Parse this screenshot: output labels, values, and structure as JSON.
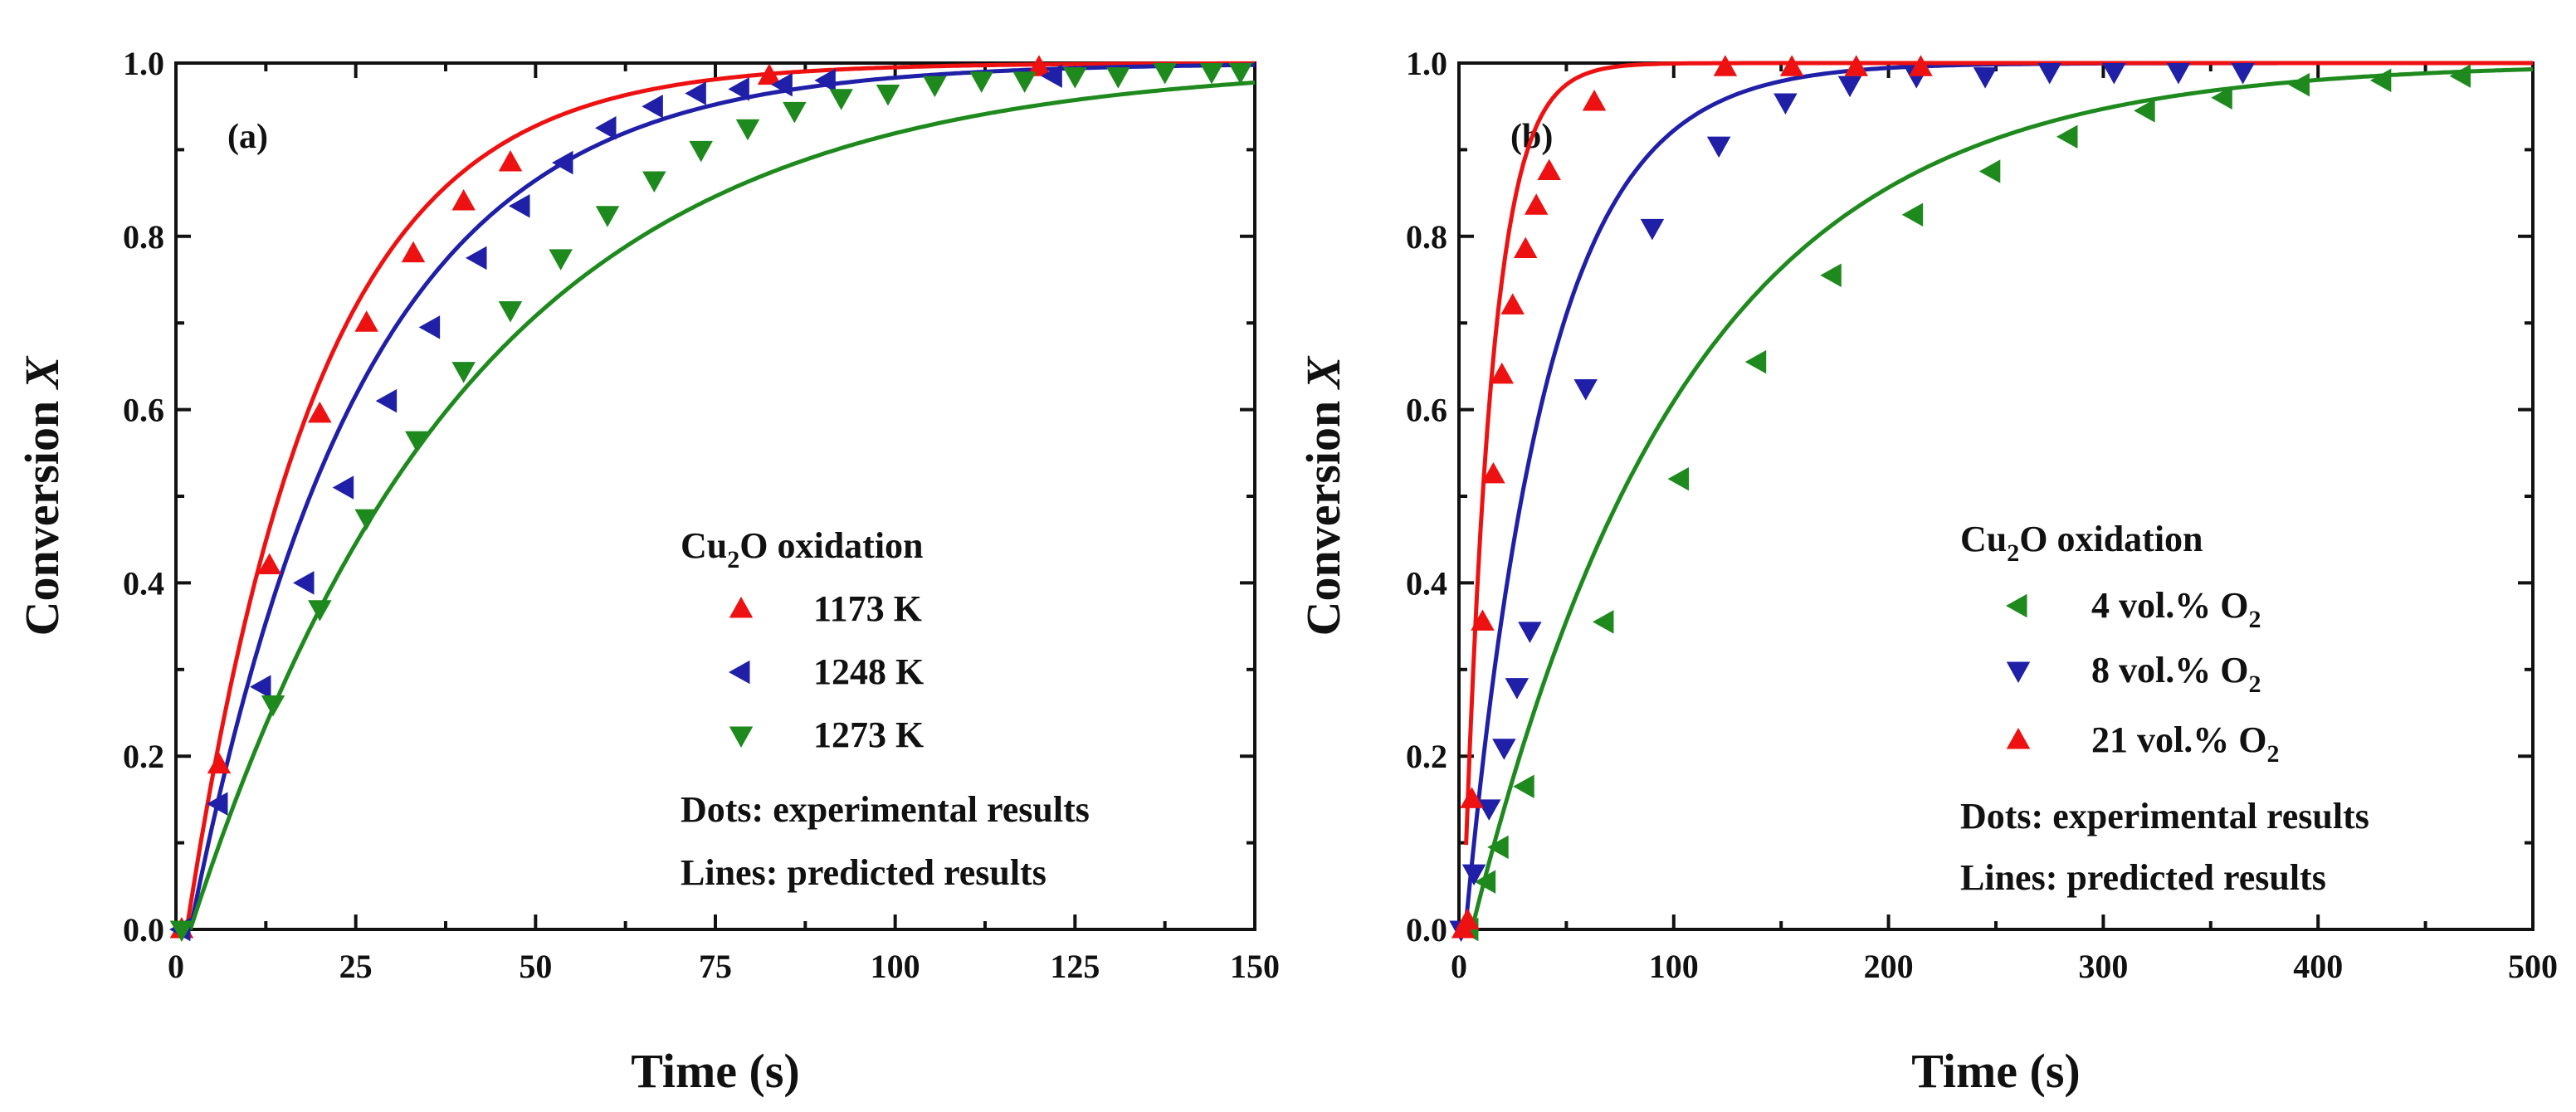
{
  "chart_data": [
    {
      "type": "scatter",
      "panel_label": "(a)",
      "xlabel": "Time (s)",
      "ylabel_text": "Conversion ",
      "ylabel_var": "X",
      "xlim": [
        0,
        150
      ],
      "ylim": [
        0,
        1.0
      ],
      "xticks": [
        0,
        25,
        50,
        75,
        100,
        125,
        150
      ],
      "yticks": [
        0.0,
        0.2,
        0.4,
        0.6,
        0.8,
        1.0
      ],
      "yticklabels": [
        "0.0",
        "0.2",
        "0.4",
        "0.6",
        "0.8",
        "1.0"
      ],
      "legend": {
        "title_prefix": "Cu",
        "title_sub": "2",
        "title_suffix": "O oxidation",
        "note_dots": "Dots: experimental results",
        "note_lines": "Lines: predicted results",
        "placement": "bottom-right"
      },
      "series": [
        {
          "label": "1173 K",
          "color": "#ee1111",
          "marker": "triangle-up",
          "model": {
            "t0": 1.5,
            "tau": 18.5
          },
          "points": [
            [
              0.8,
              0.0
            ],
            [
              6,
              0.19
            ],
            [
              13,
              0.42
            ],
            [
              20,
              0.595
            ],
            [
              26.5,
              0.7
            ],
            [
              33,
              0.78
            ],
            [
              40,
              0.84
            ],
            [
              46.5,
              0.885
            ],
            [
              82.5,
              0.985
            ],
            [
              120,
              0.995
            ]
          ]
        },
        {
          "label": "1248 K",
          "color": "#1f1fa8",
          "marker": "triangle-left",
          "model": {
            "t0": 2.0,
            "tau": 24
          },
          "points": [
            [
              0.8,
              0.0
            ],
            [
              6,
              0.145
            ],
            [
              12,
              0.28
            ],
            [
              18,
              0.4
            ],
            [
              23.5,
              0.51
            ],
            [
              29.5,
              0.61
            ],
            [
              35.5,
              0.695
            ],
            [
              42,
              0.775
            ],
            [
              48,
              0.835
            ],
            [
              54,
              0.885
            ],
            [
              60,
              0.925
            ],
            [
              66.5,
              0.95
            ],
            [
              72.5,
              0.965
            ],
            [
              78.5,
              0.97
            ],
            [
              84.5,
              0.975
            ],
            [
              90.5,
              0.98
            ],
            [
              122,
              0.985
            ]
          ]
        },
        {
          "label": "1273 K",
          "color": "#1e8a1e",
          "marker": "triangle-down",
          "model": {
            "t0": 2.0,
            "tau": 39
          },
          "points": [
            [
              0.8,
              0.0
            ],
            [
              13.5,
              0.26
            ],
            [
              20,
              0.37
            ],
            [
              26.5,
              0.475
            ],
            [
              33.5,
              0.565
            ],
            [
              40,
              0.645
            ],
            [
              46.5,
              0.715
            ],
            [
              53.5,
              0.775
            ],
            [
              60,
              0.825
            ],
            [
              66.5,
              0.865
            ],
            [
              73,
              0.9
            ],
            [
              79.5,
              0.925
            ],
            [
              86,
              0.945
            ],
            [
              92.5,
              0.96
            ],
            [
              99,
              0.965
            ],
            [
              105.5,
              0.975
            ],
            [
              112,
              0.98
            ],
            [
              118,
              0.98
            ],
            [
              125,
              0.985
            ],
            [
              131,
              0.985
            ],
            [
              137.5,
              0.99
            ],
            [
              144,
              0.99
            ],
            [
              148,
              0.99
            ]
          ]
        }
      ]
    },
    {
      "type": "scatter",
      "panel_label": "(b)",
      "xlabel": "Time (s)",
      "ylabel_text": "Conversion ",
      "ylabel_var": "X",
      "xlim": [
        0,
        500
      ],
      "ylim": [
        0,
        1.0
      ],
      "xticks": [
        0,
        100,
        200,
        300,
        400,
        500
      ],
      "yticks": [
        0.0,
        0.2,
        0.4,
        0.6,
        0.8,
        1.0
      ],
      "yticklabels": [
        "0.0",
        "0.2",
        "0.4",
        "0.6",
        "0.8",
        "1.0"
      ],
      "legend": {
        "title_prefix": "Cu",
        "title_sub": "2",
        "title_suffix": "O oxidation",
        "note_dots": "Dots: experimental results",
        "note_lines": "Lines: predicted results",
        "placement": "bottom-right"
      },
      "series": [
        {
          "label_prefix": "4 vol.% O",
          "label_sub": "2",
          "color": "#1e8a1e",
          "marker": "triangle-left",
          "model": {
            "t0": 6,
            "tau": 100
          },
          "points": [
            [
              5,
              0.0
            ],
            [
              13,
              0.055
            ],
            [
              19,
              0.095
            ],
            [
              31,
              0.165
            ],
            [
              68,
              0.355
            ],
            [
              103,
              0.52
            ],
            [
              139,
              0.655
            ],
            [
              174,
              0.755
            ],
            [
              212,
              0.825
            ],
            [
              248,
              0.875
            ],
            [
              284,
              0.915
            ],
            [
              320,
              0.945
            ],
            [
              356,
              0.96
            ],
            [
              392,
              0.975
            ],
            [
              430,
              0.98
            ],
            [
              467,
              0.985
            ]
          ]
        },
        {
          "label_prefix": "8 vol.% O",
          "label_sub": "2",
          "color": "#1f1fa8",
          "marker": "triangle-down",
          "model": {
            "t0": 3,
            "tau": 38
          },
          "points": [
            [
              1,
              0.0
            ],
            [
              7,
              0.065
            ],
            [
              14,
              0.14
            ],
            [
              21,
              0.21
            ],
            [
              27,
              0.28
            ],
            [
              33,
              0.345
            ],
            [
              59,
              0.625
            ],
            [
              90,
              0.81
            ],
            [
              121,
              0.905
            ],
            [
              152,
              0.955
            ],
            [
              182,
              0.975
            ],
            [
              213,
              0.985
            ],
            [
              245,
              0.985
            ],
            [
              275,
              0.99
            ],
            [
              305,
              0.99
            ],
            [
              335,
              0.99
            ],
            [
              365,
              0.99
            ]
          ]
        },
        {
          "label_prefix": "21 vol.% O",
          "label_sub": "2",
          "color": "#ee1111",
          "marker": "triangle-up",
          "model": {
            "t0": 2,
            "tau": 13
          },
          "points": [
            [
              2,
              0.0
            ],
            [
              4,
              0.01
            ],
            [
              6,
              0.15
            ],
            [
              11,
              0.355
            ],
            [
              16,
              0.525
            ],
            [
              20,
              0.64
            ],
            [
              25,
              0.72
            ],
            [
              31,
              0.785
            ],
            [
              36,
              0.835
            ],
            [
              42,
              0.875
            ],
            [
              63,
              0.955
            ],
            [
              124,
              0.995
            ],
            [
              155,
              0.995
            ],
            [
              185,
              0.995
            ],
            [
              215,
              0.995
            ]
          ]
        }
      ]
    }
  ]
}
